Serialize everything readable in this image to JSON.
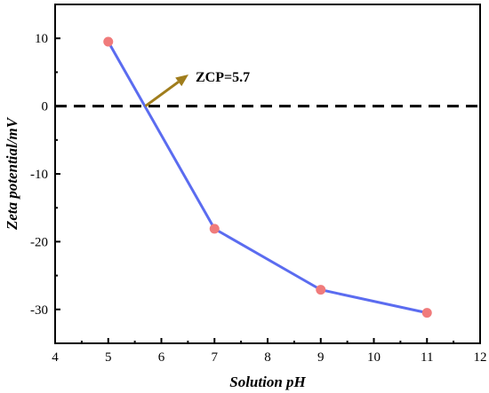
{
  "chart_data": {
    "type": "line",
    "xlabel": "Solution pH",
    "ylabel": "Zeta potential/mV",
    "xlim": [
      4,
      12
    ],
    "ylim": [
      -35,
      15
    ],
    "xticks": [
      4,
      5,
      6,
      7,
      8,
      9,
      10,
      11,
      12
    ],
    "yticks": [
      -30,
      -20,
      -10,
      0,
      10
    ],
    "xtick_labels": [
      "4",
      "5",
      "6",
      "7",
      "8",
      "9",
      "10",
      "11",
      "12"
    ],
    "ytick_labels": [
      "-30",
      "-20",
      "-10",
      "0",
      "10"
    ],
    "series": [
      {
        "x": [
          5,
          7,
          9,
          11
        ],
        "y": [
          9.5,
          -18.1,
          -27.1,
          -30.5
        ],
        "line_color": "#5b6cf0",
        "marker_color": "#f07b7b"
      }
    ],
    "reference_line": {
      "y": 0,
      "style": "dashed",
      "color": "#000000"
    },
    "annotation": {
      "text": "ZCP=5.7",
      "x": 5.7,
      "y": 0,
      "arrow_color": "#a07d1c"
    }
  }
}
